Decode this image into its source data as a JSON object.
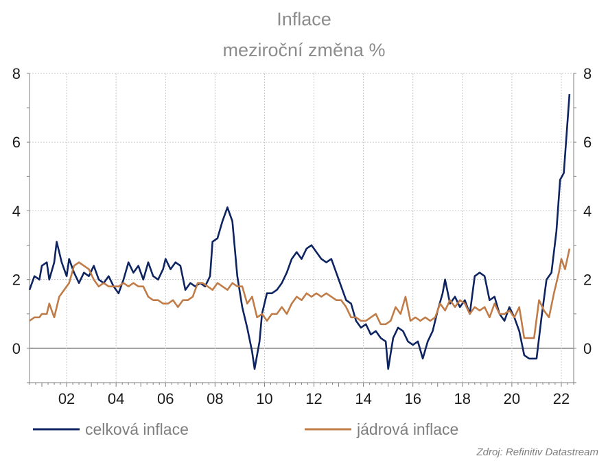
{
  "chart_data": {
    "type": "line",
    "title": "Inflace",
    "subtitle": "meziroční změna %",
    "xlabel": "",
    "ylabel": "",
    "x_start": 2000.5,
    "x_end": 2022.33,
    "xlim": [
      2000.5,
      2022.5
    ],
    "ylim": [
      -1,
      8
    ],
    "yticks": [
      "0",
      "2",
      "4",
      "6",
      "8"
    ],
    "ytick_values": [
      0,
      2,
      4,
      6,
      8
    ],
    "xticks": [
      "02",
      "04",
      "06",
      "08",
      "10",
      "12",
      "14",
      "16",
      "18",
      "20",
      "22"
    ],
    "xtick_values": [
      2002,
      2004,
      2006,
      2008,
      2010,
      2012,
      2014,
      2016,
      2018,
      2020,
      2022
    ],
    "grid": true,
    "source": "Zdroj: Refinitiv Datastream",
    "series": [
      {
        "name": "celková inflace",
        "color": "#0d2461",
        "points": [
          [
            2000.5,
            1.7
          ],
          [
            2000.7,
            2.1
          ],
          [
            2000.9,
            2.0
          ],
          [
            2001.0,
            2.4
          ],
          [
            2001.2,
            2.5
          ],
          [
            2001.3,
            2.0
          ],
          [
            2001.5,
            2.5
          ],
          [
            2001.6,
            3.1
          ],
          [
            2001.8,
            2.5
          ],
          [
            2002.0,
            2.1
          ],
          [
            2002.1,
            2.6
          ],
          [
            2002.3,
            2.2
          ],
          [
            2002.5,
            1.9
          ],
          [
            2002.7,
            2.2
          ],
          [
            2002.9,
            2.1
          ],
          [
            2003.1,
            2.4
          ],
          [
            2003.3,
            2.0
          ],
          [
            2003.5,
            1.9
          ],
          [
            2003.7,
            2.1
          ],
          [
            2003.9,
            1.8
          ],
          [
            2004.1,
            1.6
          ],
          [
            2004.3,
            2.0
          ],
          [
            2004.5,
            2.5
          ],
          [
            2004.7,
            2.2
          ],
          [
            2004.9,
            2.4
          ],
          [
            2005.1,
            2.0
          ],
          [
            2005.3,
            2.5
          ],
          [
            2005.5,
            2.1
          ],
          [
            2005.7,
            2.0
          ],
          [
            2005.9,
            2.3
          ],
          [
            2006.0,
            2.6
          ],
          [
            2006.2,
            2.3
          ],
          [
            2006.4,
            2.5
          ],
          [
            2006.6,
            2.4
          ],
          [
            2006.8,
            1.7
          ],
          [
            2007.0,
            1.9
          ],
          [
            2007.2,
            1.8
          ],
          [
            2007.4,
            1.9
          ],
          [
            2007.6,
            1.8
          ],
          [
            2007.8,
            2.1
          ],
          [
            2007.9,
            3.1
          ],
          [
            2008.1,
            3.2
          ],
          [
            2008.3,
            3.7
          ],
          [
            2008.5,
            4.1
          ],
          [
            2008.7,
            3.7
          ],
          [
            2008.9,
            2.1
          ],
          [
            2009.1,
            1.2
          ],
          [
            2009.3,
            0.6
          ],
          [
            2009.5,
            -0.1
          ],
          [
            2009.6,
            -0.6
          ],
          [
            2009.8,
            0.2
          ],
          [
            2009.9,
            1.0
          ],
          [
            2010.1,
            1.6
          ],
          [
            2010.3,
            1.6
          ],
          [
            2010.5,
            1.7
          ],
          [
            2010.7,
            1.9
          ],
          [
            2010.9,
            2.2
          ],
          [
            2011.1,
            2.6
          ],
          [
            2011.3,
            2.8
          ],
          [
            2011.5,
            2.6
          ],
          [
            2011.7,
            2.9
          ],
          [
            2011.9,
            3.0
          ],
          [
            2012.1,
            2.8
          ],
          [
            2012.3,
            2.6
          ],
          [
            2012.5,
            2.5
          ],
          [
            2012.7,
            2.6
          ],
          [
            2012.9,
            2.2
          ],
          [
            2013.1,
            1.8
          ],
          [
            2013.3,
            1.4
          ],
          [
            2013.5,
            1.3
          ],
          [
            2013.7,
            0.8
          ],
          [
            2013.9,
            0.6
          ],
          [
            2014.1,
            0.7
          ],
          [
            2014.3,
            0.4
          ],
          [
            2014.5,
            0.5
          ],
          [
            2014.7,
            0.3
          ],
          [
            2014.9,
            0.2
          ],
          [
            2015.0,
            -0.6
          ],
          [
            2015.2,
            0.3
          ],
          [
            2015.4,
            0.6
          ],
          [
            2015.6,
            0.5
          ],
          [
            2015.8,
            0.2
          ],
          [
            2016.0,
            0.1
          ],
          [
            2016.2,
            0.2
          ],
          [
            2016.4,
            -0.3
          ],
          [
            2016.6,
            0.2
          ],
          [
            2016.8,
            0.5
          ],
          [
            2017.0,
            1.1
          ],
          [
            2017.2,
            1.6
          ],
          [
            2017.3,
            2.0
          ],
          [
            2017.5,
            1.3
          ],
          [
            2017.7,
            1.5
          ],
          [
            2017.9,
            1.2
          ],
          [
            2018.1,
            1.4
          ],
          [
            2018.3,
            1.0
          ],
          [
            2018.5,
            2.1
          ],
          [
            2018.7,
            2.2
          ],
          [
            2018.9,
            2.1
          ],
          [
            2019.1,
            1.4
          ],
          [
            2019.3,
            1.5
          ],
          [
            2019.5,
            1.0
          ],
          [
            2019.7,
            0.8
          ],
          [
            2019.9,
            1.2
          ],
          [
            2020.1,
            0.9
          ],
          [
            2020.3,
            0.5
          ],
          [
            2020.5,
            -0.2
          ],
          [
            2020.7,
            -0.3
          ],
          [
            2021.0,
            -0.3
          ],
          [
            2021.2,
            0.9
          ],
          [
            2021.4,
            2.0
          ],
          [
            2021.6,
            2.2
          ],
          [
            2021.8,
            3.4
          ],
          [
            2021.95,
            4.9
          ],
          [
            2022.1,
            5.1
          ],
          [
            2022.33,
            7.4
          ]
        ]
      },
      {
        "name": "jádrová inflace",
        "color": "#c07c48",
        "points": [
          [
            2000.5,
            0.8
          ],
          [
            2000.7,
            0.9
          ],
          [
            2000.9,
            0.9
          ],
          [
            2001.0,
            1.0
          ],
          [
            2001.2,
            1.0
          ],
          [
            2001.3,
            1.3
          ],
          [
            2001.5,
            0.9
          ],
          [
            2001.7,
            1.5
          ],
          [
            2001.9,
            1.7
          ],
          [
            2002.1,
            1.9
          ],
          [
            2002.3,
            2.4
          ],
          [
            2002.5,
            2.5
          ],
          [
            2002.7,
            2.4
          ],
          [
            2002.9,
            2.3
          ],
          [
            2003.1,
            2.0
          ],
          [
            2003.3,
            1.8
          ],
          [
            2003.5,
            1.9
          ],
          [
            2003.7,
            1.8
          ],
          [
            2003.9,
            1.8
          ],
          [
            2004.1,
            1.8
          ],
          [
            2004.3,
            1.9
          ],
          [
            2004.5,
            1.8
          ],
          [
            2004.7,
            1.9
          ],
          [
            2004.9,
            1.8
          ],
          [
            2005.1,
            1.8
          ],
          [
            2005.3,
            1.5
          ],
          [
            2005.5,
            1.4
          ],
          [
            2005.7,
            1.4
          ],
          [
            2005.9,
            1.3
          ],
          [
            2006.1,
            1.3
          ],
          [
            2006.3,
            1.4
          ],
          [
            2006.5,
            1.2
          ],
          [
            2006.7,
            1.4
          ],
          [
            2006.9,
            1.4
          ],
          [
            2007.1,
            1.5
          ],
          [
            2007.3,
            1.9
          ],
          [
            2007.5,
            1.9
          ],
          [
            2007.7,
            1.8
          ],
          [
            2007.9,
            1.7
          ],
          [
            2008.1,
            1.9
          ],
          [
            2008.3,
            1.8
          ],
          [
            2008.5,
            1.7
          ],
          [
            2008.7,
            1.9
          ],
          [
            2008.9,
            1.8
          ],
          [
            2009.1,
            1.8
          ],
          [
            2009.3,
            1.3
          ],
          [
            2009.5,
            1.5
          ],
          [
            2009.7,
            0.9
          ],
          [
            2009.9,
            1.0
          ],
          [
            2010.1,
            0.8
          ],
          [
            2010.3,
            1.0
          ],
          [
            2010.5,
            1.0
          ],
          [
            2010.7,
            1.2
          ],
          [
            2010.9,
            1.0
          ],
          [
            2011.1,
            1.3
          ],
          [
            2011.3,
            1.5
          ],
          [
            2011.5,
            1.4
          ],
          [
            2011.7,
            1.6
          ],
          [
            2011.9,
            1.5
          ],
          [
            2012.1,
            1.6
          ],
          [
            2012.3,
            1.5
          ],
          [
            2012.5,
            1.6
          ],
          [
            2012.7,
            1.5
          ],
          [
            2012.9,
            1.4
          ],
          [
            2013.1,
            1.4
          ],
          [
            2013.3,
            1.2
          ],
          [
            2013.5,
            0.9
          ],
          [
            2013.7,
            0.9
          ],
          [
            2013.9,
            0.8
          ],
          [
            2014.1,
            0.8
          ],
          [
            2014.3,
            0.9
          ],
          [
            2014.5,
            1.0
          ],
          [
            2014.7,
            0.7
          ],
          [
            2014.9,
            0.7
          ],
          [
            2015.1,
            0.8
          ],
          [
            2015.3,
            1.2
          ],
          [
            2015.5,
            1.0
          ],
          [
            2015.7,
            1.5
          ],
          [
            2015.9,
            0.8
          ],
          [
            2016.1,
            0.9
          ],
          [
            2016.3,
            0.8
          ],
          [
            2016.5,
            0.9
          ],
          [
            2016.7,
            0.8
          ],
          [
            2016.9,
            0.9
          ],
          [
            2017.1,
            1.3
          ],
          [
            2017.3,
            1.1
          ],
          [
            2017.5,
            1.4
          ],
          [
            2017.7,
            1.2
          ],
          [
            2017.9,
            1.4
          ],
          [
            2018.1,
            1.3
          ],
          [
            2018.3,
            1.0
          ],
          [
            2018.5,
            1.2
          ],
          [
            2018.7,
            1.1
          ],
          [
            2018.9,
            1.2
          ],
          [
            2019.1,
            0.9
          ],
          [
            2019.3,
            1.3
          ],
          [
            2019.5,
            1.0
          ],
          [
            2019.7,
            1.0
          ],
          [
            2019.9,
            1.1
          ],
          [
            2020.1,
            0.9
          ],
          [
            2020.3,
            1.2
          ],
          [
            2020.5,
            0.3
          ],
          [
            2020.7,
            0.3
          ],
          [
            2020.9,
            0.3
          ],
          [
            2021.1,
            1.4
          ],
          [
            2021.3,
            1.1
          ],
          [
            2021.5,
            0.9
          ],
          [
            2021.7,
            1.6
          ],
          [
            2021.9,
            2.2
          ],
          [
            2022.0,
            2.6
          ],
          [
            2022.15,
            2.3
          ],
          [
            2022.33,
            2.9
          ]
        ]
      }
    ]
  }
}
